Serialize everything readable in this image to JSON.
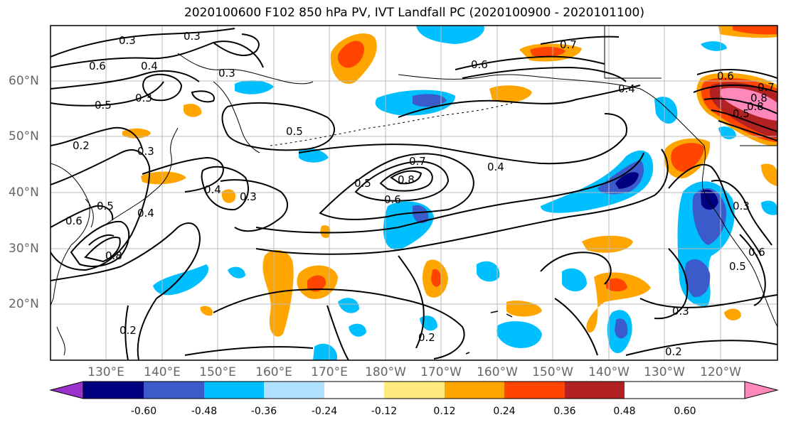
{
  "title": "2020100600 F102 850 hPa PV, IVT Landfall PC (2020100900 - 2020101100)",
  "lat_labels": [
    "60°N",
    "50°N",
    "40°N",
    "30°N",
    "20°N"
  ],
  "lon_labels": [
    "130°E",
    "140°E",
    "150°E",
    "160°E",
    "170°E",
    "180°W",
    "170°W",
    "160°W",
    "150°W",
    "140°W",
    "130°W",
    "120°W"
  ],
  "colorbar": {
    "colors": [
      "#9933cc",
      "#000080",
      "#3a5bc9",
      "#00bfff",
      "#b0e0ff",
      "#ffffff",
      "#ffea80",
      "#ffa500",
      "#ff4500",
      "#b22222",
      "#ff88bb"
    ],
    "tick_labels": [
      "-0.60",
      "-0.48",
      "-0.36",
      "-0.24",
      "-0.12",
      "0.12",
      "0.24",
      "0.36",
      "0.48",
      "0.60"
    ]
  },
  "contour_labels": [
    "0.3",
    "0.3",
    "0.6",
    "0.4",
    "0.3",
    "0.3",
    "0.5",
    "0.2",
    "0.5",
    "0.3",
    "0.5",
    "0.6",
    "0.8",
    "0.4",
    "0.3",
    "0.4",
    "0.7",
    "0.8",
    "0.6",
    "0.5",
    "0.4",
    "0.8",
    "0.7",
    "0.6",
    "0.4",
    "0.6",
    "0.8",
    "0.7",
    "0.5",
    "0.3",
    "0.5",
    "0.6",
    "0.3",
    "0.2",
    "0.2",
    "0.2"
  ]
}
